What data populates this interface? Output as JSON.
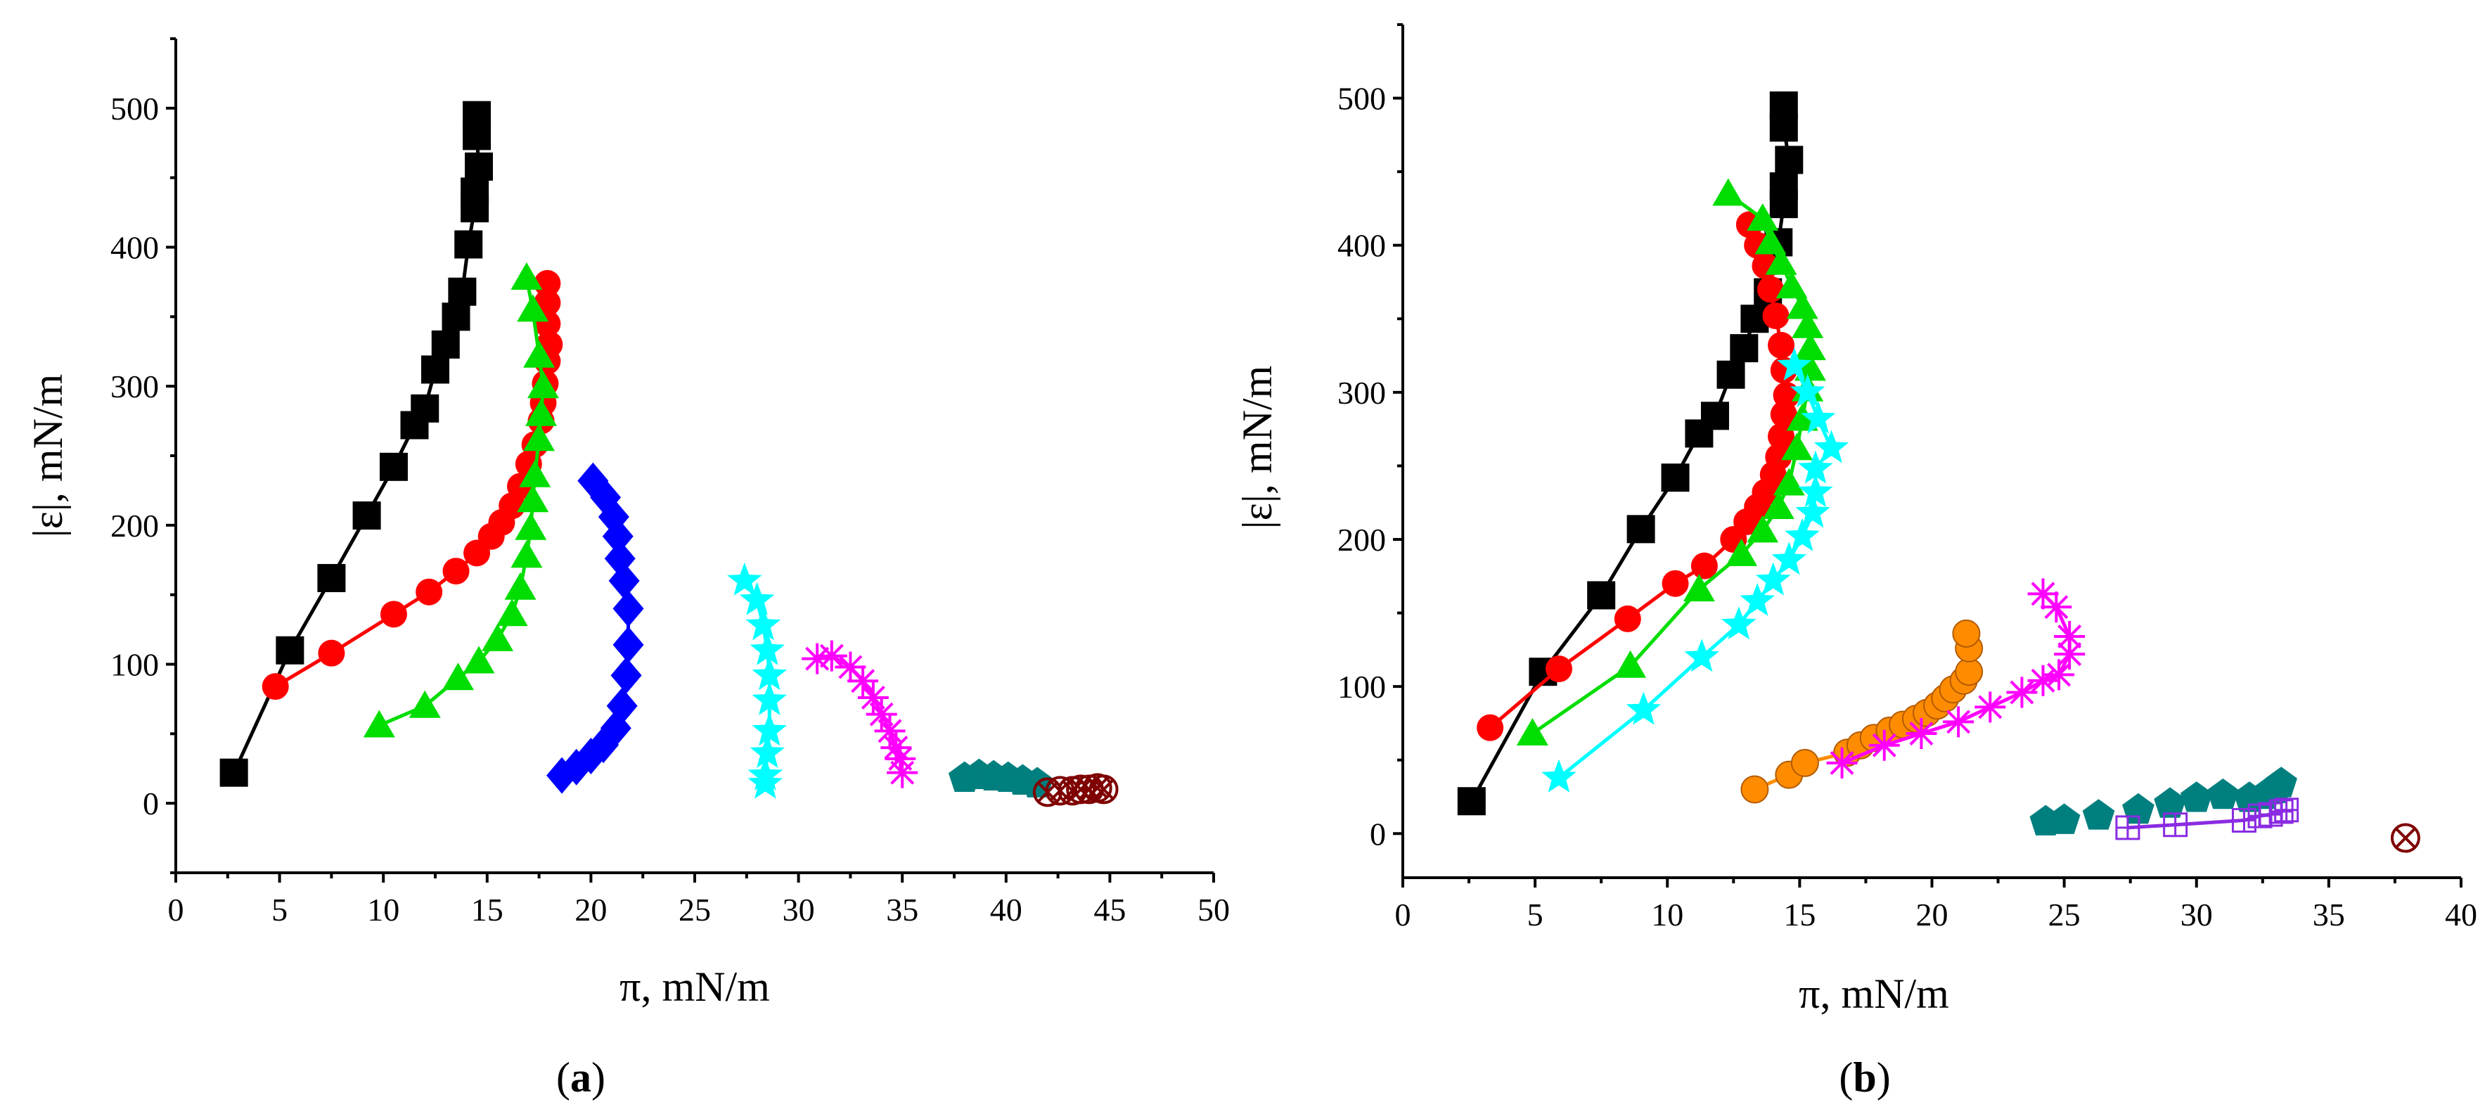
{
  "chart_data": [
    {
      "type": "scatter",
      "panel": "(a)",
      "panel_letter": "a",
      "xlabel": "π, mN/m",
      "ylabel": "|ε|, mN/m",
      "xlim": [
        0,
        50
      ],
      "ylim": [
        -50,
        550
      ],
      "xticks": [
        0,
        5,
        10,
        15,
        20,
        25,
        30,
        35,
        40,
        45,
        50
      ],
      "yticks": [
        0,
        100,
        200,
        300,
        400,
        500
      ],
      "series": [
        {
          "name": "black-squares",
          "marker": "square",
          "color": "#000000",
          "connected": true,
          "points": [
            [
              2.8,
              22
            ],
            [
              5.5,
              110
            ],
            [
              7.5,
              162
            ],
            [
              9.2,
              207
            ],
            [
              10.5,
              242
            ],
            [
              11.5,
              272
            ],
            [
              12.0,
              284
            ],
            [
              12.5,
              312
            ],
            [
              13.0,
              330
            ],
            [
              13.5,
              350
            ],
            [
              13.8,
              368
            ],
            [
              14.1,
              402
            ],
            [
              14.4,
              428
            ],
            [
              14.4,
              440
            ],
            [
              14.6,
              458
            ],
            [
              14.5,
              480
            ],
            [
              14.5,
              495
            ]
          ]
        },
        {
          "name": "red-circles",
          "marker": "circle",
          "color": "#ff0000",
          "connected": true,
          "points": [
            [
              4.8,
              84
            ],
            [
              7.5,
              108
            ],
            [
              10.5,
              136
            ],
            [
              12.2,
              152
            ],
            [
              13.5,
              167
            ],
            [
              14.5,
              180
            ],
            [
              15.2,
              192
            ],
            [
              15.7,
              202
            ],
            [
              16.2,
              214
            ],
            [
              16.6,
              228
            ],
            [
              17.0,
              244
            ],
            [
              17.3,
              258
            ],
            [
              17.6,
              275
            ],
            [
              17.7,
              288
            ],
            [
              17.8,
              302
            ],
            [
              17.9,
              318
            ],
            [
              18.0,
              330
            ],
            [
              17.9,
              345
            ],
            [
              17.9,
              360
            ],
            [
              17.9,
              374
            ]
          ]
        },
        {
          "name": "green-triangles",
          "marker": "triangle",
          "color": "#00dd00",
          "connected": true,
          "points": [
            [
              9.8,
              56
            ],
            [
              12.0,
              70
            ],
            [
              13.6,
              90
            ],
            [
              14.6,
              102
            ],
            [
              15.5,
              118
            ],
            [
              16.2,
              136
            ],
            [
              16.6,
              155
            ],
            [
              16.9,
              178
            ],
            [
              17.1,
              198
            ],
            [
              17.2,
              218
            ],
            [
              17.3,
              236
            ],
            [
              17.5,
              262
            ],
            [
              17.6,
              280
            ],
            [
              17.7,
              300
            ],
            [
              17.5,
              322
            ],
            [
              17.2,
              355
            ],
            [
              16.9,
              378
            ]
          ]
        },
        {
          "name": "blue-diamonds",
          "marker": "diamond",
          "color": "#0000ff",
          "connected": true,
          "points": [
            [
              18.6,
              20
            ],
            [
              19.3,
              26
            ],
            [
              20.0,
              34
            ],
            [
              20.6,
              42
            ],
            [
              21.2,
              54
            ],
            [
              21.5,
              70
            ],
            [
              21.7,
              92
            ],
            [
              21.8,
              114
            ],
            [
              21.8,
              140
            ],
            [
              21.6,
              160
            ],
            [
              21.4,
              176
            ],
            [
              21.3,
              192
            ],
            [
              21.1,
              206
            ],
            [
              20.7,
              220
            ],
            [
              20.1,
              232
            ]
          ]
        },
        {
          "name": "cyan-stars",
          "marker": "star",
          "color": "#00ffff",
          "connected": true,
          "points": [
            [
              28.4,
              14
            ],
            [
              28.4,
              20
            ],
            [
              28.5,
              36
            ],
            [
              28.6,
              52
            ],
            [
              28.6,
              74
            ],
            [
              28.6,
              92
            ],
            [
              28.5,
              110
            ],
            [
              28.3,
              128
            ],
            [
              28.0,
              146
            ],
            [
              27.4,
              160
            ]
          ]
        },
        {
          "name": "magenta-asterisks",
          "marker": "asterisk",
          "color": "#ff00ff",
          "connected": true,
          "points": [
            [
              35.0,
              22
            ],
            [
              34.9,
              32
            ],
            [
              34.7,
              40
            ],
            [
              34.4,
              52
            ],
            [
              34.0,
              64
            ],
            [
              33.6,
              76
            ],
            [
              33.1,
              88
            ],
            [
              32.5,
              98
            ],
            [
              31.6,
              106
            ],
            [
              30.9,
              104
            ]
          ]
        },
        {
          "name": "teal-pentagons",
          "marker": "pentagon",
          "color": "#007f7f",
          "connected": false,
          "points": [
            [
              38.0,
              18
            ],
            [
              38.7,
              20
            ],
            [
              39.4,
              19
            ],
            [
              40.1,
              18
            ],
            [
              40.8,
              16
            ],
            [
              41.5,
              14
            ]
          ]
        },
        {
          "name": "darkred-circled-x",
          "marker": "circle-x",
          "color": "#7f0000",
          "connected": false,
          "points": [
            [
              42.0,
              8
            ],
            [
              42.6,
              9
            ],
            [
              43.2,
              9
            ],
            [
              43.6,
              10
            ],
            [
              44.0,
              10
            ],
            [
              44.4,
              11
            ],
            [
              44.7,
              10
            ]
          ]
        }
      ]
    },
    {
      "type": "scatter",
      "panel": "(b)",
      "panel_letter": "b",
      "xlabel": "π, mN/m",
      "ylabel": "|ε|, mN/m",
      "xlim": [
        0,
        40
      ],
      "ylim": [
        -30,
        550
      ],
      "xticks": [
        0,
        5,
        10,
        15,
        20,
        25,
        30,
        35,
        40
      ],
      "yticks": [
        0,
        100,
        200,
        300,
        400,
        500
      ],
      "series": [
        {
          "name": "black-squares",
          "marker": "square",
          "color": "#000000",
          "connected": true,
          "points": [
            [
              2.6,
              22
            ],
            [
              5.3,
              110
            ],
            [
              7.5,
              162
            ],
            [
              9.0,
              207
            ],
            [
              10.3,
              242
            ],
            [
              11.2,
              272
            ],
            [
              11.8,
              284
            ],
            [
              12.4,
              312
            ],
            [
              12.9,
              330
            ],
            [
              13.3,
              350
            ],
            [
              13.8,
              368
            ],
            [
              14.2,
              402
            ],
            [
              14.4,
              428
            ],
            [
              14.4,
              440
            ],
            [
              14.6,
              458
            ],
            [
              14.4,
              480
            ],
            [
              14.4,
              495
            ]
          ]
        },
        {
          "name": "red-circles",
          "marker": "circle",
          "color": "#ff0000",
          "connected": true,
          "points": [
            [
              3.3,
              72
            ],
            [
              5.9,
              112
            ],
            [
              8.5,
              146
            ],
            [
              10.3,
              170
            ],
            [
              11.4,
              182
            ],
            [
              12.5,
              200
            ],
            [
              13.0,
              212
            ],
            [
              13.4,
              222
            ],
            [
              13.7,
              232
            ],
            [
              14.0,
              244
            ],
            [
              14.2,
              256
            ],
            [
              14.3,
              270
            ],
            [
              14.4,
              285
            ],
            [
              14.5,
              298
            ],
            [
              14.4,
              315
            ],
            [
              14.3,
              332
            ],
            [
              14.1,
              352
            ],
            [
              13.9,
              370
            ],
            [
              13.7,
              386
            ],
            [
              13.4,
              400
            ],
            [
              13.1,
              414
            ]
          ]
        },
        {
          "name": "green-triangles",
          "marker": "triangle",
          "color": "#00dd00",
          "connected": true,
          "points": [
            [
              4.9,
              68
            ],
            [
              8.6,
              114
            ],
            [
              11.2,
              166
            ],
            [
              12.8,
              190
            ],
            [
              13.6,
              206
            ],
            [
              14.2,
              222
            ],
            [
              14.6,
              238
            ],
            [
              14.9,
              262
            ],
            [
              15.1,
              282
            ],
            [
              15.3,
              302
            ],
            [
              15.4,
              316
            ],
            [
              15.4,
              330
            ],
            [
              15.3,
              345
            ],
            [
              15.1,
              358
            ],
            [
              14.7,
              372
            ],
            [
              14.3,
              388
            ],
            [
              13.9,
              402
            ],
            [
              13.6,
              418
            ],
            [
              12.3,
              435
            ]
          ]
        },
        {
          "name": "cyan-stars",
          "marker": "star",
          "color": "#00ffff",
          "connected": true,
          "points": [
            [
              5.9,
              38
            ],
            [
              9.1,
              84
            ],
            [
              11.3,
              120
            ],
            [
              12.7,
              142
            ],
            [
              13.4,
              158
            ],
            [
              14.0,
              172
            ],
            [
              14.6,
              186
            ],
            [
              15.1,
              202
            ],
            [
              15.5,
              218
            ],
            [
              15.6,
              232
            ],
            [
              15.6,
              248
            ],
            [
              16.2,
              262
            ],
            [
              15.7,
              282
            ],
            [
              15.3,
              300
            ],
            [
              14.8,
              318
            ]
          ]
        },
        {
          "name": "orange-spheres",
          "marker": "sphere",
          "color": "#ff8c00",
          "connected": true,
          "points": [
            [
              13.3,
              30
            ],
            [
              14.6,
              40
            ],
            [
              15.2,
              48
            ],
            [
              16.8,
              55
            ],
            [
              17.3,
              60
            ],
            [
              17.8,
              65
            ],
            [
              18.4,
              70
            ],
            [
              18.9,
              74
            ],
            [
              19.4,
              78
            ],
            [
              19.8,
              82
            ],
            [
              20.2,
              87
            ],
            [
              20.5,
              92
            ],
            [
              20.8,
              98
            ],
            [
              21.2,
              104
            ],
            [
              21.4,
              110
            ],
            [
              21.4,
              126
            ],
            [
              21.3,
              136
            ]
          ]
        },
        {
          "name": "magenta-asterisks",
          "marker": "asterisk",
          "color": "#ff00ff",
          "connected": true,
          "points": [
            [
              16.6,
              48
            ],
            [
              18.2,
              60
            ],
            [
              19.6,
              68
            ],
            [
              21.0,
              76
            ],
            [
              22.2,
              86
            ],
            [
              23.4,
              96
            ],
            [
              24.2,
              104
            ],
            [
              24.8,
              108
            ],
            [
              25.2,
              122
            ],
            [
              25.2,
              134
            ],
            [
              24.7,
              154
            ],
            [
              24.2,
              163
            ]
          ]
        },
        {
          "name": "teal-pentagons",
          "marker": "pentagon",
          "color": "#007f7f",
          "connected": false,
          "points": [
            [
              24.3,
              8
            ],
            [
              25.0,
              9
            ],
            [
              26.3,
              12
            ],
            [
              27.8,
              16
            ],
            [
              29.0,
              20
            ],
            [
              30.0,
              24
            ],
            [
              31.0,
              26
            ],
            [
              32.0,
              24
            ],
            [
              32.6,
              26
            ],
            [
              33.0,
              30
            ],
            [
              33.2,
              34
            ]
          ]
        },
        {
          "name": "purple-squares-plus",
          "marker": "square-plus",
          "color": "#8a2be2",
          "connected": true,
          "points": [
            [
              27.4,
              4
            ],
            [
              29.2,
              6
            ],
            [
              31.8,
              9
            ],
            [
              32.4,
              12
            ],
            [
              32.8,
              13
            ],
            [
              33.2,
              15
            ],
            [
              33.4,
              16
            ]
          ]
        },
        {
          "name": "darkred-circled-x",
          "marker": "circle-x",
          "color": "#7f0000",
          "connected": false,
          "points": [
            [
              37.9,
              -3
            ]
          ]
        }
      ]
    }
  ]
}
